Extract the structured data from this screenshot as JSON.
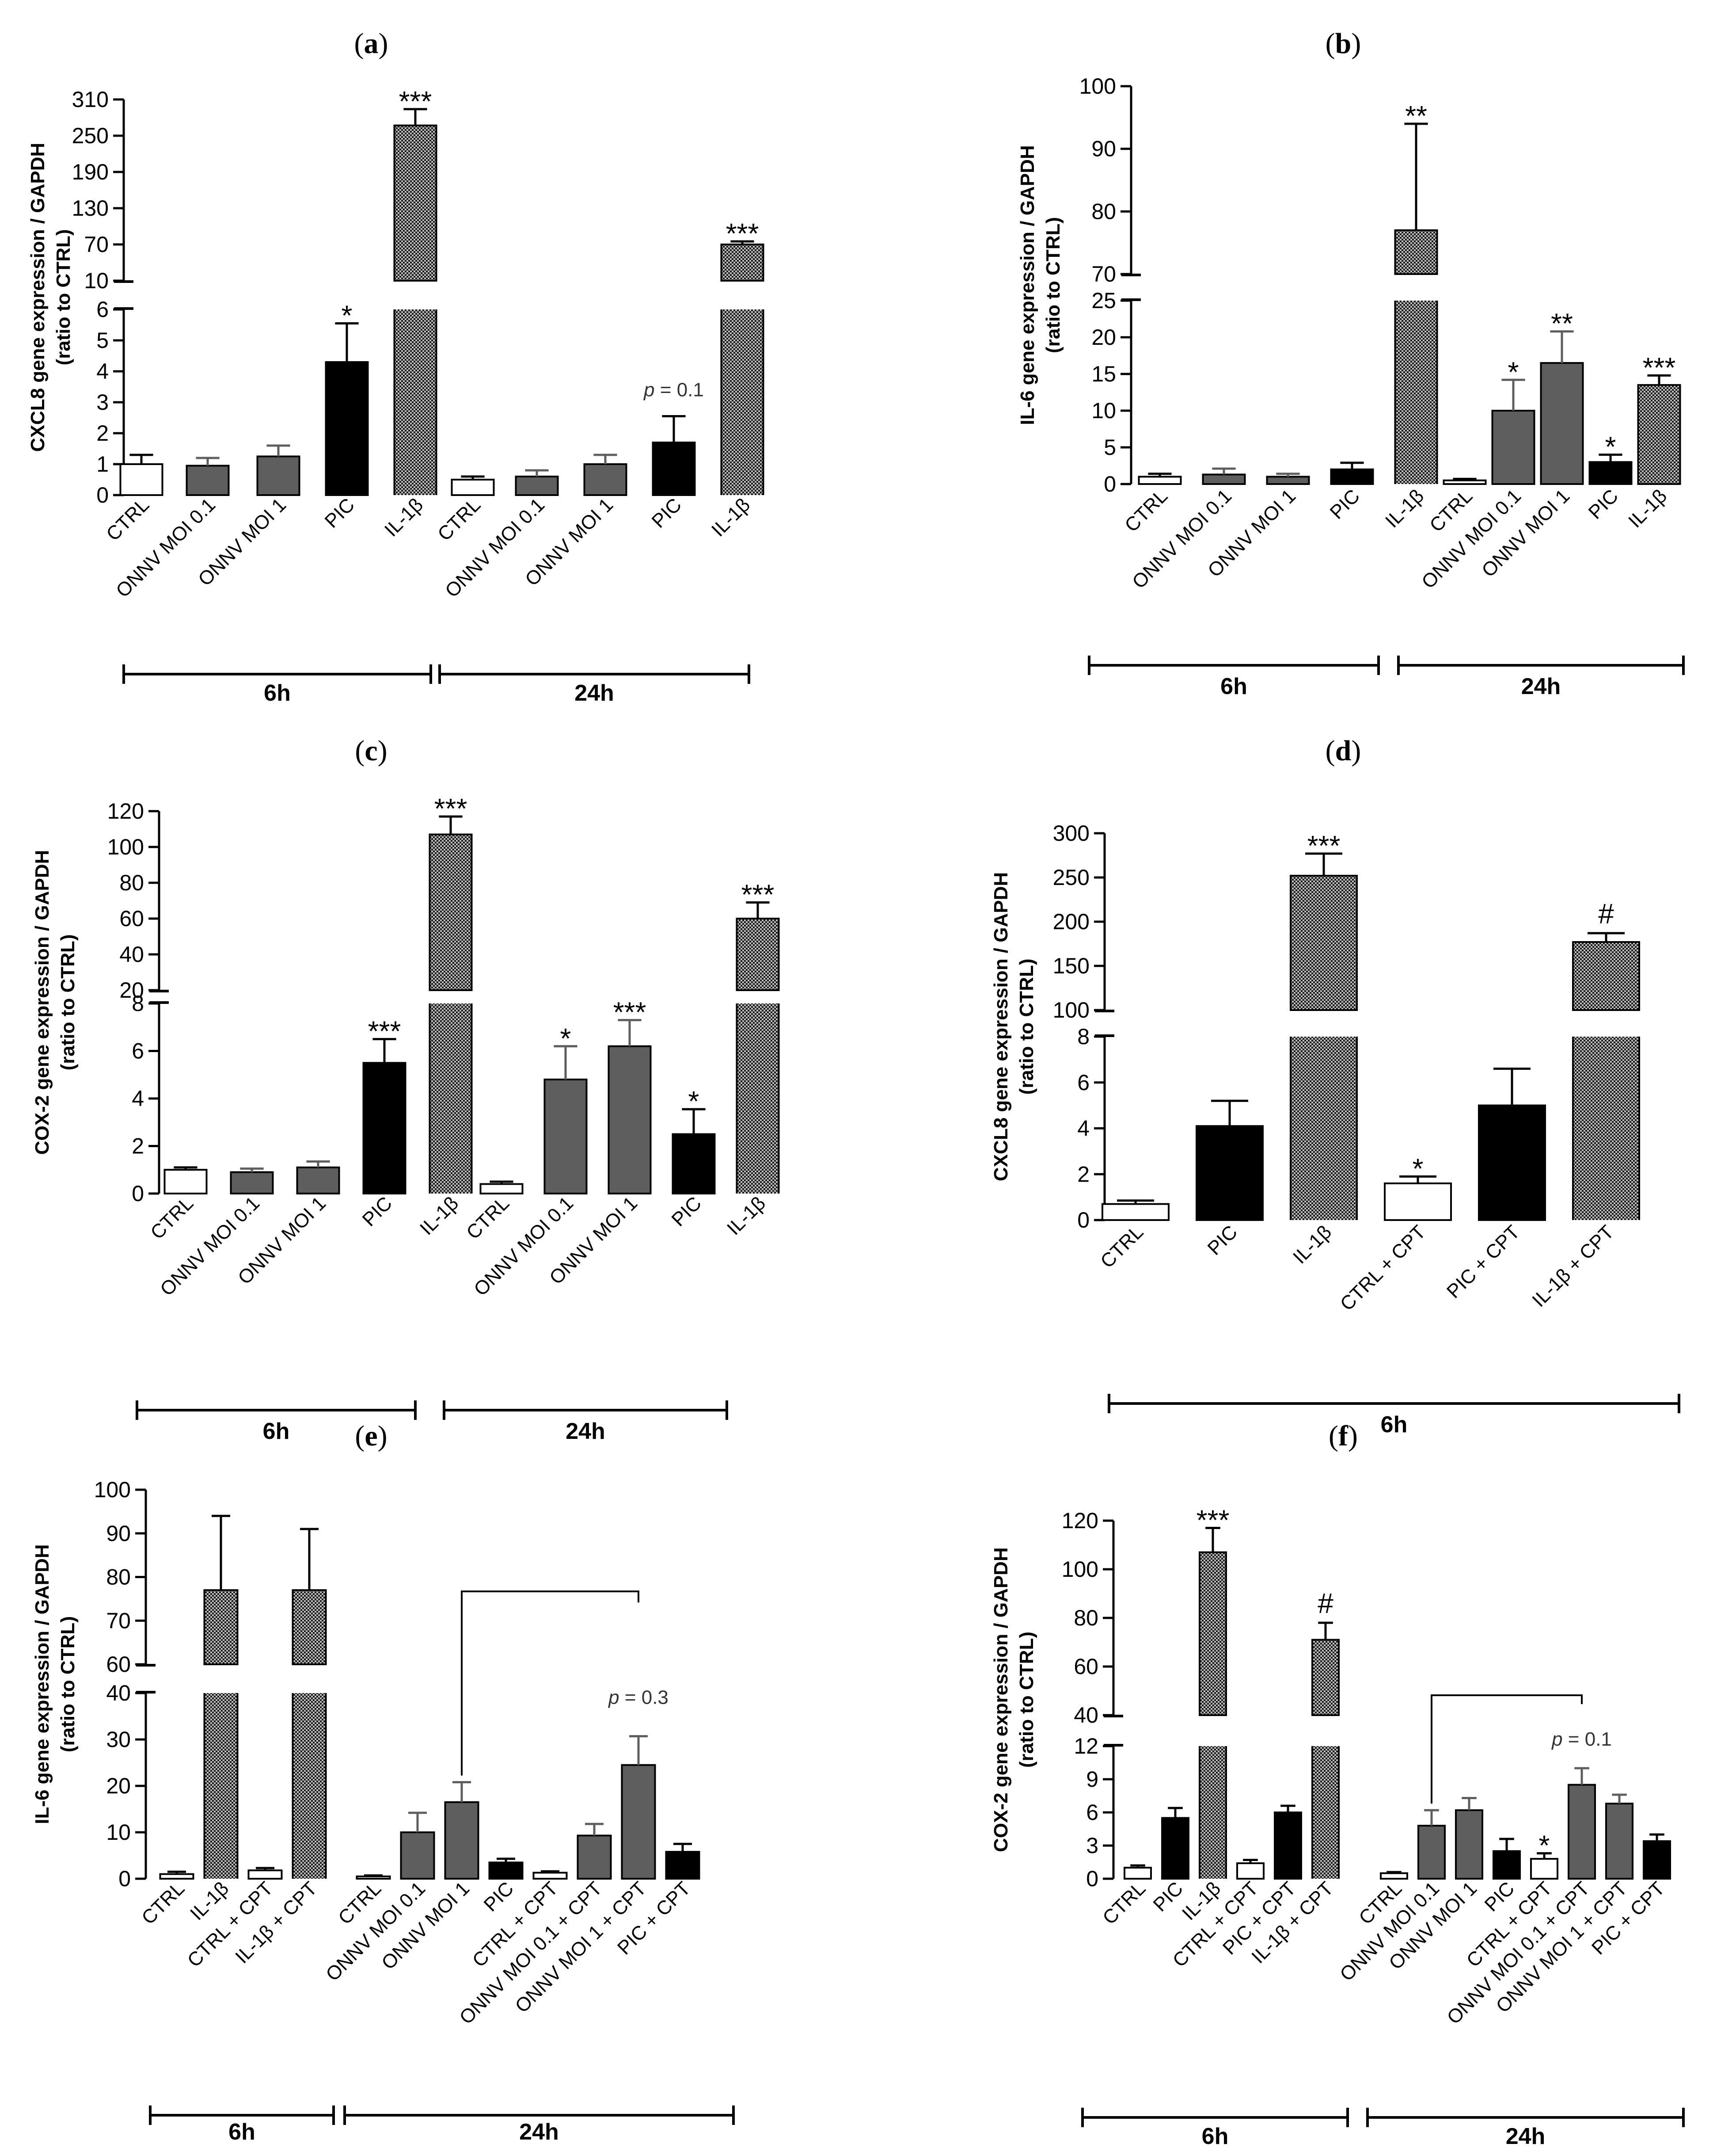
{
  "chart_data": [
    {
      "id": "a",
      "panel_label": "(a)",
      "type": "bar",
      "title": "",
      "ylabel_line1": "CXCL8 gene expression / GAPDH",
      "ylabel_line2": "(ratio to CTRL)",
      "axis_upper_ticks": [
        "10",
        "70",
        "130",
        "190",
        "250",
        "310"
      ],
      "axis_lower_ticks": [
        "0",
        "1",
        "2",
        "3",
        "4",
        "5",
        "6"
      ],
      "ylim_lower": [
        0,
        6
      ],
      "ylim_upper": [
        10,
        310
      ],
      "categories": [
        "CTRL",
        "ONNV MOI 0.1",
        "ONNV MOI 1",
        "PIC",
        "IL-1β",
        "CTRL",
        "ONNV MOI 0.1",
        "ONNV MOI 1",
        "PIC",
        "IL-1β"
      ],
      "values": [
        1.0,
        0.95,
        1.25,
        4.3,
        267,
        0.5,
        0.6,
        1.0,
        1.7,
        70
      ],
      "errors": [
        0.3,
        0.25,
        0.35,
        1.25,
        27,
        0.1,
        0.2,
        0.3,
        0.85,
        5
      ],
      "fills": [
        "white",
        "gray",
        "gray",
        "black",
        "hatch",
        "white",
        "gray",
        "gray",
        "black",
        "hatch"
      ],
      "annotations": [
        "",
        "",
        "",
        "*",
        "***",
        "",
        "",
        "",
        "",
        "***"
      ],
      "note": {
        "text": "= 0.1",
        "prefix": "p",
        "bar_index": 8
      },
      "groups": [
        {
          "label": "6h"
        },
        {
          "label": "24h"
        }
      ]
    },
    {
      "id": "b",
      "panel_label": "(b)",
      "type": "bar",
      "title": "",
      "ylabel_line1": "IL-6 gene expression / GAPDH",
      "ylabel_line2": "(ratio to CTRL)",
      "axis_upper_ticks": [
        "70",
        "80",
        "90",
        "100"
      ],
      "axis_lower_ticks": [
        "0",
        "5",
        "10",
        "15",
        "20",
        "25"
      ],
      "ylim_lower": [
        0,
        25
      ],
      "ylim_upper": [
        70,
        100
      ],
      "categories": [
        "CTRL",
        "ONNV MOI 0.1",
        "ONNV MOI 1",
        "PIC",
        "IL-1β",
        "CTRL",
        "ONNV MOI 0.1",
        "ONNV MOI 1",
        "PIC",
        "IL-1β"
      ],
      "values": [
        1.0,
        1.3,
        1.0,
        2.0,
        77,
        0.5,
        10,
        16.5,
        3.0,
        13.5
      ],
      "errors": [
        0.4,
        0.8,
        0.4,
        0.9,
        17,
        0.2,
        4.2,
        4.3,
        1.0,
        1.3
      ],
      "fills": [
        "white",
        "gray",
        "gray",
        "black",
        "hatch",
        "white",
        "gray",
        "gray",
        "black",
        "hatch"
      ],
      "annotations": [
        "",
        "",
        "",
        "",
        "**",
        "",
        "*",
        "**",
        "*",
        "***"
      ],
      "groups": [
        {
          "label": "6h"
        },
        {
          "label": "24h"
        }
      ]
    },
    {
      "id": "c",
      "panel_label": "(c)",
      "type": "bar",
      "title": "",
      "ylabel_line1": "COX-2 gene expression / GAPDH",
      "ylabel_line2": "(ratio to CTRL)",
      "axis_upper_ticks": [
        "20",
        "40",
        "60",
        "80",
        "100",
        "120"
      ],
      "axis_lower_ticks": [
        "0",
        "2",
        "4",
        "6",
        "8"
      ],
      "ylim_lower": [
        0,
        8
      ],
      "ylim_upper": [
        20,
        120
      ],
      "categories": [
        "CTRL",
        "ONNV MOI 0.1",
        "ONNV MOI 1",
        "PIC",
        "IL-1β",
        "CTRL",
        "ONNV MOI 0.1",
        "ONNV MOI 1",
        "PIC",
        "IL-1β"
      ],
      "values": [
        1.0,
        0.9,
        1.1,
        5.5,
        107,
        0.4,
        4.8,
        6.2,
        2.5,
        60
      ],
      "errors": [
        0.1,
        0.15,
        0.25,
        1.0,
        10,
        0.1,
        1.4,
        1.1,
        1.05,
        9
      ],
      "fills": [
        "white",
        "gray",
        "gray",
        "black",
        "hatch",
        "white",
        "gray",
        "gray",
        "black",
        "hatch"
      ],
      "annotations": [
        "",
        "",
        "",
        "***",
        "***",
        "",
        "*",
        "***",
        "*",
        "***"
      ],
      "groups": [
        {
          "label": "6h"
        },
        {
          "label": "24h"
        }
      ]
    },
    {
      "id": "d",
      "panel_label": "(d)",
      "type": "bar",
      "title": "",
      "ylabel_line1": "CXCL8 gene expression / GAPDH",
      "ylabel_line2": "(ratio to CTRL)",
      "axis_upper_ticks": [
        "100",
        "150",
        "200",
        "250",
        "300"
      ],
      "axis_lower_ticks": [
        "0",
        "2",
        "4",
        "6",
        "8"
      ],
      "ylim_lower": [
        0,
        8
      ],
      "ylim_upper": [
        100,
        300
      ],
      "categories": [
        "CTRL",
        "PIC",
        "IL-1β",
        "CTRL + CPT",
        "PIC + CPT",
        "IL-1β + CPT"
      ],
      "values": [
        0.7,
        4.1,
        252,
        1.6,
        5.0,
        177
      ],
      "errors": [
        0.15,
        1.1,
        25,
        0.3,
        1.6,
        10
      ],
      "fills": [
        "white",
        "black",
        "hatch",
        "white",
        "black",
        "hatch"
      ],
      "annotations": [
        "",
        "",
        "***",
        "*",
        "",
        "#"
      ],
      "groups": [
        {
          "label": "6h"
        }
      ]
    },
    {
      "id": "e",
      "panel_label": "(e)",
      "type": "bar",
      "title": "",
      "ylabel_line1": "IL-6 gene expression / GAPDH",
      "ylabel_line2": "(ratio to CTRL)",
      "axis_upper_ticks": [
        "60",
        "70",
        "80",
        "90",
        "100"
      ],
      "axis_lower_ticks": [
        "0",
        "10",
        "20",
        "30",
        "40"
      ],
      "ylim_lower": [
        0,
        40
      ],
      "ylim_upper": [
        60,
        100
      ],
      "categories": [
        "CTRL",
        "IL-1β",
        "CTRL + CPT",
        "IL-1β + CPT",
        "CTRL",
        "ONNV MOI 0.1",
        "ONNV MOI 1",
        "PIC",
        "CTRL + CPT",
        "ONNV MOI 0.1 + CPT",
        "ONNV MOI 1 + CPT",
        "PIC + CPT"
      ],
      "values": [
        1.0,
        77,
        1.8,
        77,
        0.5,
        10,
        16.5,
        3.5,
        1.3,
        9.3,
        24.5,
        5.8
      ],
      "errors": [
        0.5,
        17,
        0.5,
        14,
        0.2,
        4.2,
        4.3,
        0.8,
        0.3,
        2.5,
        6.2,
        1.7
      ],
      "fills": [
        "white",
        "hatch",
        "white",
        "hatch",
        "white",
        "gray",
        "gray",
        "black",
        "white",
        "gray",
        "gray",
        "black"
      ],
      "annotations": [
        "",
        "",
        "",
        "",
        "",
        "",
        "",
        "",
        "",
        "",
        "",
        ""
      ],
      "note": {
        "text": "= 0.3",
        "prefix": "p",
        "bar_index": 10
      },
      "bracket": [
        6,
        10
      ],
      "groups": [
        {
          "label": "6h"
        },
        {
          "label": "24h"
        }
      ]
    },
    {
      "id": "f",
      "panel_label": "(f)",
      "type": "bar",
      "title": "",
      "ylabel_line1": "COX-2 gene expression / GAPDH",
      "ylabel_line2": "(ratio to CTRL)",
      "axis_upper_ticks": [
        "40",
        "60",
        "80",
        "100",
        "120"
      ],
      "axis_lower_ticks": [
        "0",
        "3",
        "6",
        "9",
        "12"
      ],
      "ylim_lower": [
        0,
        12
      ],
      "ylim_upper": [
        40,
        120
      ],
      "categories": [
        "CTRL",
        "PIC",
        "IL-1β",
        "CTRL + CPT",
        "PIC + CPT",
        "IL-1β + CPT",
        "CTRL",
        "ONNV MOI 0.1",
        "ONNV MOI 1",
        "PIC",
        "CTRL + CPT",
        "ONNV MOI 0.1 + CPT",
        "ONNV MOI 1 + CPT",
        "PIC + CPT"
      ],
      "values": [
        1.0,
        5.5,
        107,
        1.4,
        6.0,
        71,
        0.5,
        4.8,
        6.2,
        2.5,
        1.8,
        8.5,
        6.8,
        3.4
      ],
      "errors": [
        0.2,
        0.9,
        10,
        0.3,
        0.6,
        7,
        0.1,
        1.4,
        1.1,
        1.1,
        0.5,
        1.5,
        0.8,
        0.6
      ],
      "fills": [
        "white",
        "black",
        "hatch",
        "white",
        "black",
        "hatch",
        "white",
        "gray",
        "gray",
        "black",
        "white",
        "gray",
        "gray",
        "black"
      ],
      "annotations": [
        "",
        "",
        "***",
        "",
        "",
        "#",
        "",
        "",
        "",
        "",
        "*",
        "",
        "",
        ""
      ],
      "note": {
        "text": "= 0.1",
        "prefix": "p",
        "bar_index": 11
      },
      "bracket": [
        7,
        11
      ],
      "groups": [
        {
          "label": "6h"
        },
        {
          "label": "24h"
        }
      ]
    }
  ],
  "colors": {
    "gray": "#5e5e5e",
    "black": "#000000",
    "white": "#ffffff",
    "hatch_dark": "#1a1a1a",
    "hatch_light": "#bdbdbd"
  }
}
